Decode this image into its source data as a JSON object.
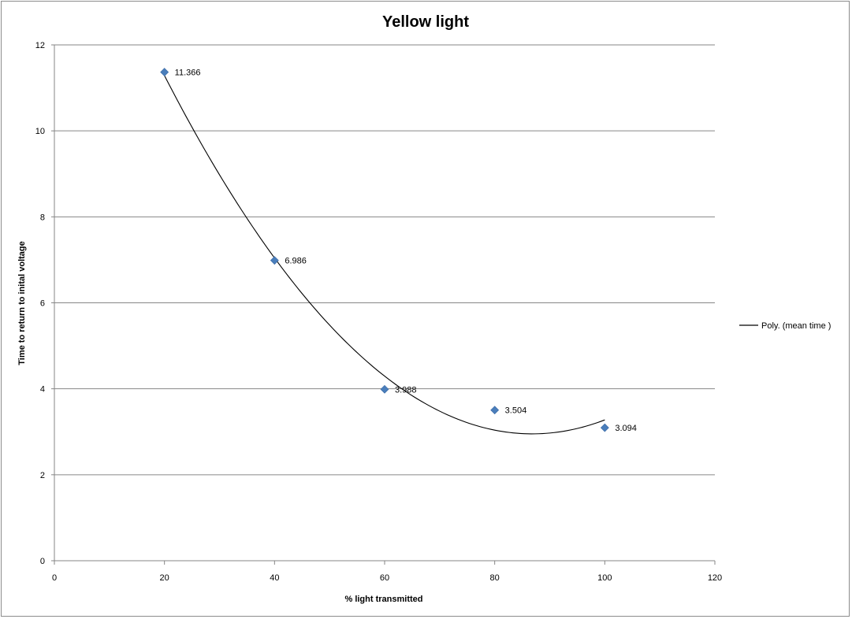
{
  "chart_data": {
    "type": "scatter",
    "title": "Yellow light",
    "xlabel": "% light transmitted",
    "ylabel": "Time to return to inital voltage",
    "xlim": [
      0,
      120
    ],
    "ylim": [
      0,
      12
    ],
    "xticks": [
      0,
      20,
      40,
      60,
      80,
      100,
      120
    ],
    "yticks": [
      0,
      2,
      4,
      6,
      8,
      10,
      12
    ],
    "grid": "horizontal",
    "legend_position": "right",
    "series": [
      {
        "marker": "diamond",
        "color": "#4a7ebb",
        "x": [
          20,
          40,
          60,
          80,
          100
        ],
        "y": [
          11.366,
          6.986,
          3.988,
          3.504,
          3.094
        ],
        "data_labels": [
          "11.366",
          "6.986",
          "3.988",
          "3.504",
          "3.094"
        ]
      }
    ],
    "trendline": {
      "name": "Poly. (mean time )",
      "kind": "polynomial",
      "order": 2,
      "color": "#000000"
    }
  }
}
